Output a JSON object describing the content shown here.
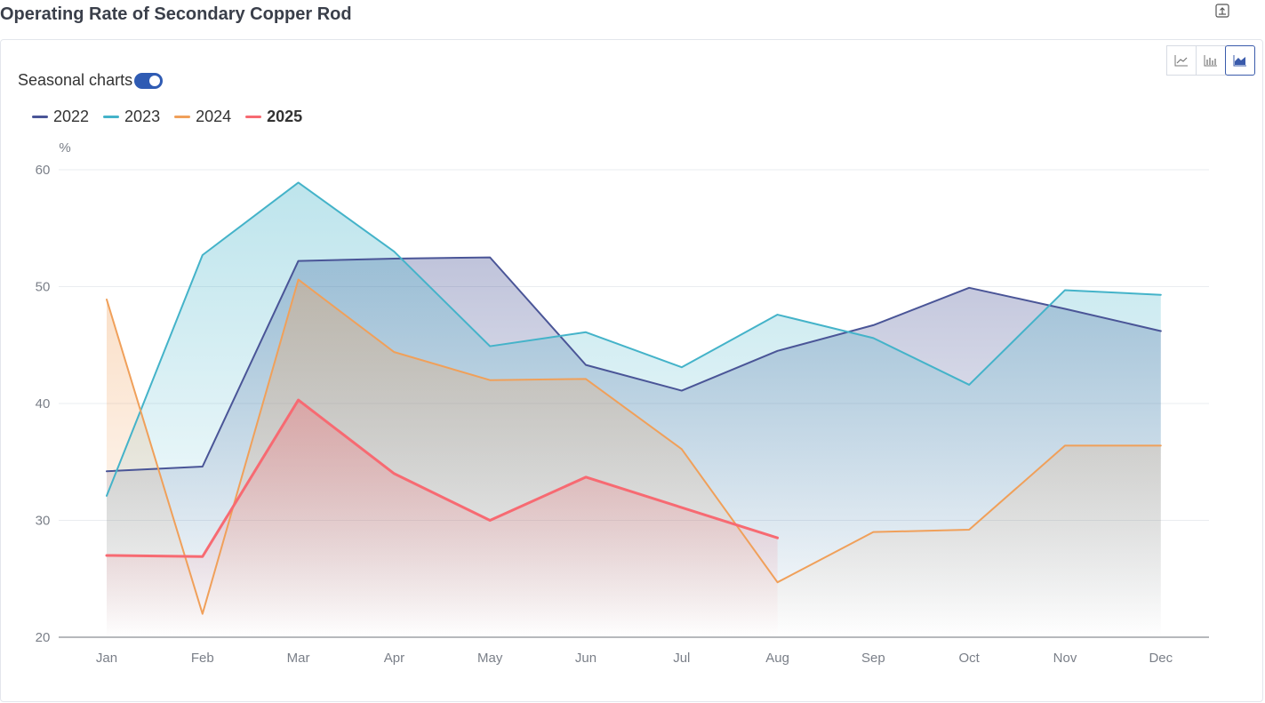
{
  "page": {
    "title": "Operating Rate of Secondary Copper Rod"
  },
  "toolbar": {
    "export_icon": "export-icon",
    "chart_types": [
      {
        "name": "line-chart",
        "icon": "line-chart-icon",
        "active": false
      },
      {
        "name": "bar-chart",
        "icon": "bar-chart-icon",
        "active": false
      },
      {
        "name": "area-chart",
        "icon": "area-chart-icon",
        "active": true
      }
    ]
  },
  "seasonal": {
    "label": "Seasonal charts",
    "enabled": true
  },
  "chart_data": {
    "type": "area",
    "title": "",
    "ylabel": "%",
    "xlabel": "",
    "ylim": [
      20,
      60
    ],
    "yticks": [
      "20",
      "30",
      "40",
      "50",
      "60"
    ],
    "grid": true,
    "legend_position": "top-left",
    "categories": [
      "Jan",
      "Feb",
      "Mar",
      "Apr",
      "May",
      "Jun",
      "Jul",
      "Aug",
      "Sep",
      "Oct",
      "Nov",
      "Dec"
    ],
    "series": [
      {
        "name": "2022",
        "color": "#4a5597",
        "bold": false,
        "values": [
          34.2,
          34.6,
          52.2,
          52.4,
          52.5,
          43.3,
          41.1,
          44.5,
          46.7,
          49.9,
          48.1,
          46.2
        ]
      },
      {
        "name": "2023",
        "color": "#44b3c9",
        "bold": false,
        "values": [
          32.1,
          52.7,
          58.9,
          53.0,
          44.9,
          46.1,
          43.1,
          47.6,
          45.6,
          41.6,
          49.7,
          49.3
        ]
      },
      {
        "name": "2024",
        "color": "#f0a05a",
        "bold": false,
        "values": [
          48.9,
          22.0,
          50.6,
          44.4,
          42.0,
          42.1,
          36.1,
          24.7,
          29.0,
          29.2,
          36.4,
          36.4
        ]
      },
      {
        "name": "2025",
        "color": "#f76a72",
        "bold": true,
        "values": [
          27.0,
          26.9,
          40.3,
          34.0,
          30.0,
          33.7,
          null,
          28.5,
          null,
          null,
          null,
          null
        ]
      }
    ]
  }
}
